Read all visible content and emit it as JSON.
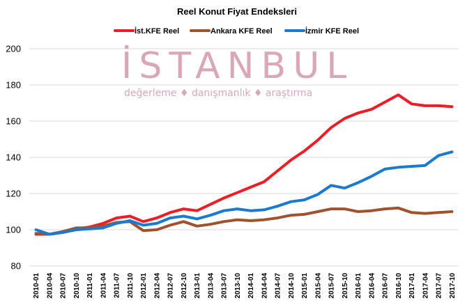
{
  "chart_data": {
    "type": "line",
    "title": "Reel Konut Fiyat Endeksleri",
    "xlabel": "",
    "ylabel": "",
    "ylim": [
      80,
      200
    ],
    "yticks": [
      "80",
      "100",
      "120",
      "140",
      "160",
      "180",
      "200"
    ],
    "grid": true,
    "legend_position": "top",
    "watermark": {
      "main": "İSTANBUL",
      "sub": "değerleme  ♦  danışmanlık  ♦  araştırma",
      "color": "#d9a7b8"
    },
    "x_ticks": [
      "2010-01",
      "2010-04",
      "2010-07",
      "2010-10",
      "2011-01",
      "2011-04",
      "2011-07",
      "2011-10",
      "2012-01",
      "2012-04",
      "2012-07",
      "2012-10",
      "2013-01",
      "2013-04",
      "2013-07",
      "2013-10",
      "2014-01",
      "2014-04",
      "2014-07",
      "2014-10",
      "2015-01",
      "2015-04",
      "2015-07",
      "2015-10",
      "2016-01",
      "2016-04",
      "2016-07",
      "2016-10",
      "2017-01",
      "2017-04",
      "2017-07",
      "2017-10"
    ],
    "series": [
      {
        "name": "İst.KFE Reel",
        "color": "#ee1c24",
        "values": [
          97.5,
          97.5,
          98.5,
          100.5,
          101.5,
          103.5,
          106.5,
          107.5,
          104.5,
          106.5,
          109.5,
          111.5,
          110.5,
          114,
          117.5,
          120.5,
          123.5,
          126.5,
          132.5,
          138.5,
          143.5,
          149.5,
          156.5,
          161.5,
          164.5,
          166.5,
          170.5,
          174.5,
          169.5,
          168.5,
          168.5,
          168.0
        ]
      },
      {
        "name": "Ankara KFE Reel",
        "color": "#a0522d",
        "values": [
          98.0,
          97.5,
          99.0,
          101.0,
          101.0,
          102.0,
          104.0,
          104.5,
          99.5,
          100.0,
          102.5,
          104.5,
          102.0,
          103.0,
          104.5,
          105.5,
          105.0,
          105.5,
          106.5,
          108.0,
          108.5,
          110.0,
          111.5,
          111.5,
          110.0,
          110.5,
          111.5,
          112.0,
          109.5,
          109.0,
          109.5,
          110.0
        ]
      },
      {
        "name": "İzmir KFE Reel",
        "color": "#1a7ad0",
        "values": [
          100.0,
          97.5,
          98.5,
          100.0,
          100.5,
          101.0,
          103.5,
          105.0,
          102.5,
          103.5,
          106.5,
          107.5,
          106.0,
          108.0,
          110.5,
          111.5,
          110.5,
          111.0,
          113.0,
          115.5,
          116.5,
          119.5,
          124.5,
          123.0,
          126.0,
          129.5,
          133.5,
          134.5,
          135.0,
          135.5,
          141.0,
          143.0
        ]
      }
    ]
  }
}
